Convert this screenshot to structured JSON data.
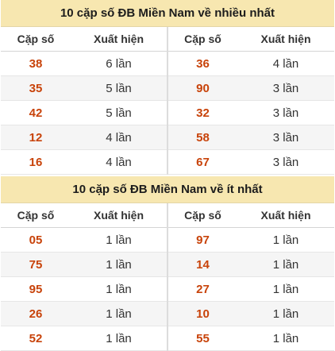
{
  "sections": [
    {
      "title": "10 cặp số ĐB Miền Nam về nhiều nhất",
      "headers": [
        "Cặp số",
        "Xuất hiện",
        "Cặp số",
        "Xuất hiện"
      ],
      "rows": [
        [
          "38",
          "6 lần",
          "36",
          "4 lần"
        ],
        [
          "35",
          "5 lần",
          "90",
          "3 lần"
        ],
        [
          "42",
          "5 lần",
          "32",
          "3 lần"
        ],
        [
          "12",
          "4 lần",
          "58",
          "3 lần"
        ],
        [
          "16",
          "4 lần",
          "67",
          "3 lần"
        ]
      ]
    },
    {
      "title": "10 cặp số ĐB Miền Nam về ít nhất",
      "headers": [
        "Cặp số",
        "Xuất hiện",
        "Cặp số",
        "Xuất hiện"
      ],
      "rows": [
        [
          "05",
          "1 lần",
          "97",
          "1 lần"
        ],
        [
          "75",
          "1 lần",
          "14",
          "1 lần"
        ],
        [
          "95",
          "1 lần",
          "27",
          "1 lần"
        ],
        [
          "26",
          "1 lần",
          "10",
          "1 lần"
        ],
        [
          "52",
          "1 lần",
          "55",
          "1 lần"
        ]
      ]
    }
  ]
}
